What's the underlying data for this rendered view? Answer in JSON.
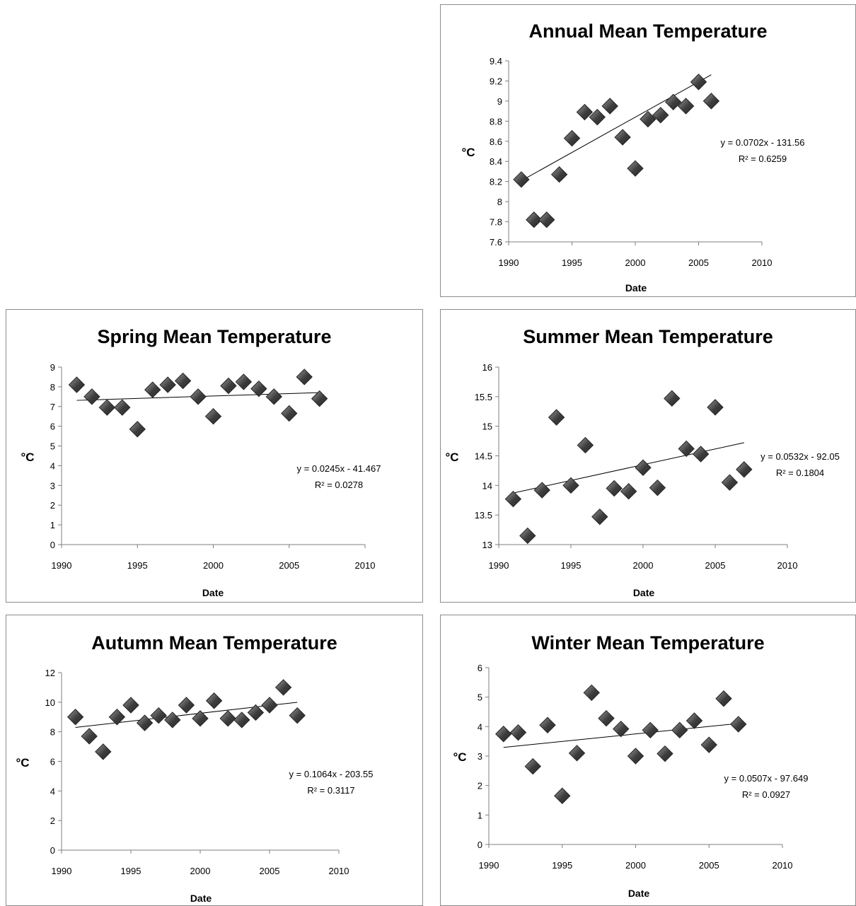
{
  "colors": {
    "marker_dark": "#3c3c3c",
    "marker_light": "#9a9a9a",
    "trendline": "#000000",
    "axis": "#7f7f7f"
  },
  "chart_data": [
    {
      "type": "scatter",
      "title": "Annual Mean Temperature",
      "xlabel": "Date",
      "ylabel": "°C",
      "xlim": [
        1990,
        2010
      ],
      "ylim": [
        7.6,
        9.4
      ],
      "xticks": [
        "1990",
        "1995",
        "2000",
        "2005",
        "2010"
      ],
      "yticks": [
        "7.6",
        "7.8",
        "8",
        "8.2",
        "8.4",
        "8.6",
        "8.8",
        "9",
        "9.2",
        "9.4"
      ],
      "x": [
        1991,
        1992,
        1993,
        1994,
        1995,
        1996,
        1997,
        1998,
        1999,
        2000,
        2001,
        2002,
        2003,
        2004,
        2005,
        2006
      ],
      "y": [
        8.22,
        7.82,
        7.82,
        8.27,
        8.63,
        8.89,
        8.84,
        8.95,
        8.64,
        8.33,
        8.82,
        8.86,
        8.99,
        8.95,
        9.19,
        9.0
      ],
      "trendline": {
        "slope": 0.0702,
        "intercept": -131.56,
        "x_range": [
          1991,
          2006
        ]
      },
      "equation": "y = 0.0702x - 131.56",
      "r2": "R² = 0.6259",
      "grid": false,
      "legend": "none"
    },
    {
      "type": "scatter",
      "title": "Spring Mean Temperature",
      "xlabel": "Date",
      "ylabel": "°C",
      "xlim": [
        1990,
        2010
      ],
      "ylim": [
        0,
        9
      ],
      "xticks": [
        "1990",
        "1995",
        "2000",
        "2005",
        "2010"
      ],
      "yticks": [
        "0",
        "1",
        "2",
        "3",
        "4",
        "5",
        "6",
        "7",
        "8",
        "9"
      ],
      "x": [
        1991,
        1992,
        1993,
        1994,
        1995,
        1996,
        1997,
        1998,
        1999,
        2000,
        2001,
        2002,
        2003,
        2004,
        2005,
        2006,
        2007
      ],
      "y": [
        8.1,
        7.5,
        6.95,
        6.95,
        5.85,
        7.85,
        8.1,
        8.3,
        7.5,
        6.5,
        8.05,
        8.25,
        7.9,
        7.5,
        6.65,
        8.5,
        7.4
      ],
      "trendline": {
        "slope": 0.0245,
        "intercept": -41.467,
        "x_range": [
          1991,
          2007
        ]
      },
      "equation": "y = 0.0245x - 41.467",
      "r2": "R² = 0.0278",
      "grid": false,
      "legend": "none"
    },
    {
      "type": "scatter",
      "title": "Summer Mean Temperature",
      "xlabel": "Date",
      "ylabel": "°C",
      "xlim": [
        1990,
        2010
      ],
      "ylim": [
        13,
        16
      ],
      "xticks": [
        "1990",
        "1995",
        "2000",
        "2005",
        "2010"
      ],
      "yticks": [
        "13",
        "13.5",
        "14",
        "14.5",
        "15",
        "15.5",
        "16"
      ],
      "x": [
        1991,
        1992,
        1993,
        1994,
        1995,
        1996,
        1997,
        1998,
        1999,
        2000,
        2001,
        2002,
        2003,
        2004,
        2005,
        2006,
        2007
      ],
      "y": [
        13.77,
        13.15,
        13.92,
        15.15,
        14.0,
        14.68,
        13.47,
        13.95,
        13.9,
        14.3,
        13.96,
        15.47,
        14.62,
        14.53,
        15.32,
        14.05,
        14.27
      ],
      "trendline": {
        "slope": 0.0532,
        "intercept": -92.05,
        "x_range": [
          1991,
          2007
        ]
      },
      "equation": "y = 0.0532x - 92.05",
      "r2": "R² = 0.1804",
      "grid": false,
      "legend": "none"
    },
    {
      "type": "scatter",
      "title": "Autumn Mean Temperature",
      "xlabel": "Date",
      "ylabel": "°C",
      "xlim": [
        1990,
        2010
      ],
      "ylim": [
        0,
        12
      ],
      "xticks": [
        "1990",
        "1995",
        "2000",
        "2005",
        "2010"
      ],
      "yticks": [
        "0",
        "2",
        "4",
        "6",
        "8",
        "10",
        "12"
      ],
      "x": [
        1991,
        1992,
        1993,
        1994,
        1995,
        1996,
        1997,
        1998,
        1999,
        2000,
        2001,
        2002,
        2003,
        2004,
        2005,
        2006,
        2007
      ],
      "y": [
        9.0,
        7.7,
        6.65,
        9.0,
        9.8,
        8.6,
        9.1,
        8.8,
        9.8,
        8.9,
        10.1,
        8.9,
        8.8,
        9.3,
        9.8,
        11.0,
        9.1
      ],
      "trendline": {
        "slope": 0.1064,
        "intercept": -203.55,
        "x_range": [
          1991,
          2007
        ]
      },
      "equation": "y = 0.1064x - 203.55",
      "r2": "R² = 0.3117",
      "grid": false,
      "legend": "none"
    },
    {
      "type": "scatter",
      "title": "Winter Mean Temperature",
      "xlabel": "Date",
      "ylabel": "°C",
      "xlim": [
        1990,
        2010
      ],
      "ylim": [
        0,
        6
      ],
      "xticks": [
        "1990",
        "1995",
        "2000",
        "2005",
        "2010"
      ],
      "yticks": [
        "0",
        "1",
        "2",
        "3",
        "4",
        "5",
        "6"
      ],
      "x": [
        1991,
        1992,
        1993,
        1994,
        1995,
        1996,
        1997,
        1998,
        1999,
        2000,
        2001,
        2002,
        2003,
        2004,
        2005,
        2006,
        2007
      ],
      "y": [
        3.75,
        3.8,
        2.65,
        4.05,
        1.65,
        3.1,
        5.15,
        4.28,
        3.92,
        3.0,
        3.88,
        3.08,
        3.88,
        4.2,
        3.38,
        4.95,
        4.08
      ],
      "trendline": {
        "slope": 0.0507,
        "intercept": -97.649,
        "x_range": [
          1991,
          2007
        ]
      },
      "equation": "y = 0.0507x - 97.649",
      "r2": "R² = 0.0927",
      "grid": false,
      "legend": "none"
    }
  ]
}
